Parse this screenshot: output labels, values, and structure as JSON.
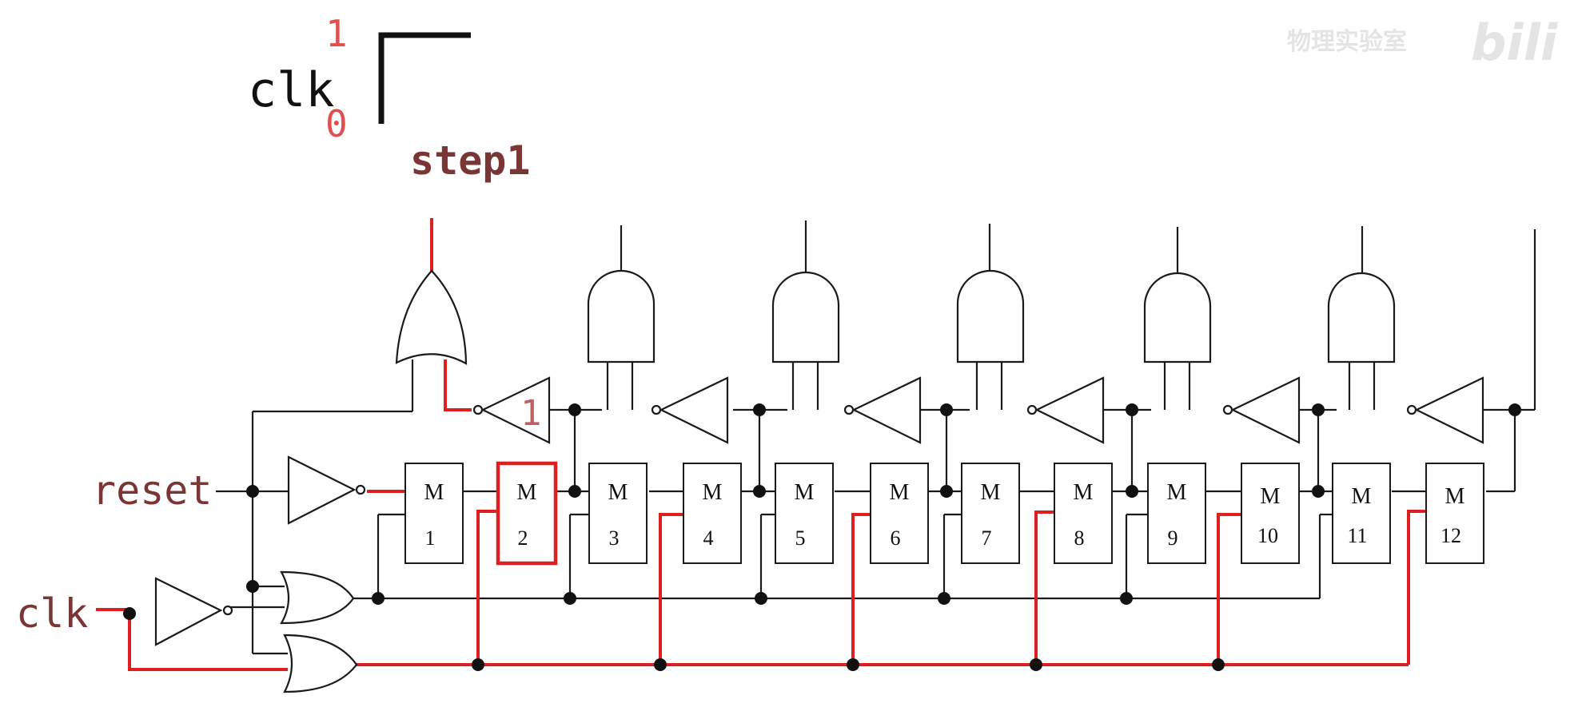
{
  "timing": {
    "signal_label": "clk",
    "high_label": "1",
    "low_label": "0",
    "step_label": "step1"
  },
  "inputs": {
    "reset_label": "reset",
    "clk_label": "clk"
  },
  "modules": [
    {
      "letter": "M",
      "number": "1"
    },
    {
      "letter": "M",
      "number": "2"
    },
    {
      "letter": "M",
      "number": "3"
    },
    {
      "letter": "M",
      "number": "4"
    },
    {
      "letter": "M",
      "number": "5"
    },
    {
      "letter": "M",
      "number": "6"
    },
    {
      "letter": "M",
      "number": "7"
    },
    {
      "letter": "M",
      "number": "8"
    },
    {
      "letter": "M",
      "number": "9"
    },
    {
      "letter": "M",
      "number": "10"
    },
    {
      "letter": "M",
      "number": "11"
    },
    {
      "letter": "M",
      "number": "12"
    }
  ],
  "highlighted_module": "2",
  "first_inverter_value": "1",
  "watermark": "物理实验室",
  "colors": {
    "active": "#dd1f1f",
    "wire": "#1a1a1a",
    "label": "#7a3535",
    "signal_level": "#e05050",
    "watermark": "#e4e4e4"
  }
}
